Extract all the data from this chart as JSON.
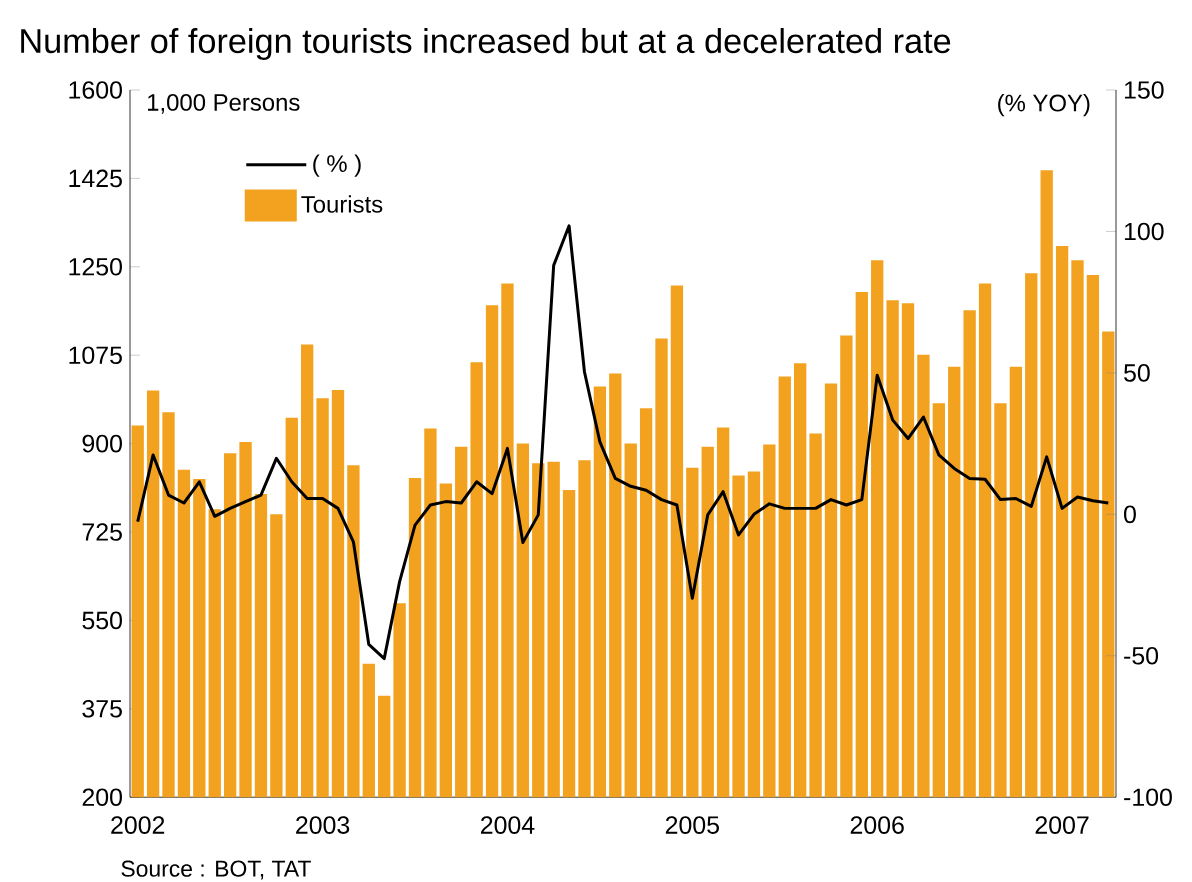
{
  "chart_data": {
    "type": "bar",
    "title": "Number of foreign tourists increased but at a decelerated rate",
    "ylabel": "1,000 Persons",
    "y2label": "(% YOY)",
    "categories": [
      "2002",
      null,
      null,
      null,
      null,
      null,
      null,
      null,
      null,
      null,
      null,
      null,
      "2003",
      null,
      null,
      null,
      null,
      null,
      null,
      null,
      null,
      null,
      null,
      null,
      "2004",
      null,
      null,
      null,
      null,
      null,
      null,
      null,
      null,
      null,
      null,
      null,
      "2005",
      null,
      null,
      null,
      null,
      null,
      null,
      null,
      null,
      null,
      null,
      null,
      "2006",
      null,
      null,
      null,
      null,
      null,
      null,
      null,
      null,
      null,
      null,
      null,
      "2007",
      null,
      null,
      null
    ],
    "series": [
      {
        "name": "( % )",
        "type": "line",
        "axis": "y2",
        "color": "#000000",
        "values": [
          -2.6,
          21,
          6.8,
          4,
          11.5,
          -0.7,
          2.1,
          4.5,
          6.8,
          19.8,
          11.5,
          5.6,
          5.6,
          2.1,
          -9.7,
          -46,
          -51,
          -23.8,
          -3.8,
          3.3,
          4.5,
          4,
          11.5,
          7.3,
          23.3,
          -10,
          -0.2,
          88,
          102,
          50.3,
          25.6,
          12.7,
          9.9,
          8.5,
          5.2,
          3.3,
          -29.7,
          -0.2,
          8,
          -7.3,
          0,
          3.7,
          2.1,
          2.1,
          2.1,
          5.2,
          3.3,
          5.2,
          49.2,
          33.4,
          26.8,
          34.4,
          21,
          16.2,
          12.7,
          12.4,
          5.2,
          5.6,
          2.8,
          20.3,
          2.1,
          6.1,
          4.8,
          4
        ]
      },
      {
        "name": "Tourists",
        "color": "#f2a21e",
        "values": [
          936,
          1005,
          962,
          848,
          830,
          770,
          881,
          903,
          800,
          760,
          951,
          1096,
          990,
          1006,
          857,
          464,
          401,
          584,
          832,
          930,
          821,
          894,
          1061,
          1174,
          1217,
          900,
          861,
          864,
          808,
          867,
          1013,
          1039,
          900,
          970,
          1108,
          1213,
          852,
          894,
          932,
          837,
          845,
          898,
          1033,
          1059,
          920,
          1019,
          1114,
          1200,
          1263,
          1184,
          1178,
          1076,
          980,
          1052,
          1164,
          1217,
          980,
          1052,
          1237,
          1441,
          1291,
          1263,
          1234,
          1122
        ]
      }
    ],
    "ylim": [
      200,
      1600
    ],
    "yticks": [
      200,
      375,
      550,
      725,
      900,
      1075,
      1250,
      1425,
      1600
    ],
    "y2lim": [
      -100,
      150
    ],
    "y2ticks": [
      -100,
      -50,
      0,
      50,
      100,
      150
    ],
    "legend": "top left",
    "annotations": [
      "Source : BOT, TAT"
    ]
  }
}
